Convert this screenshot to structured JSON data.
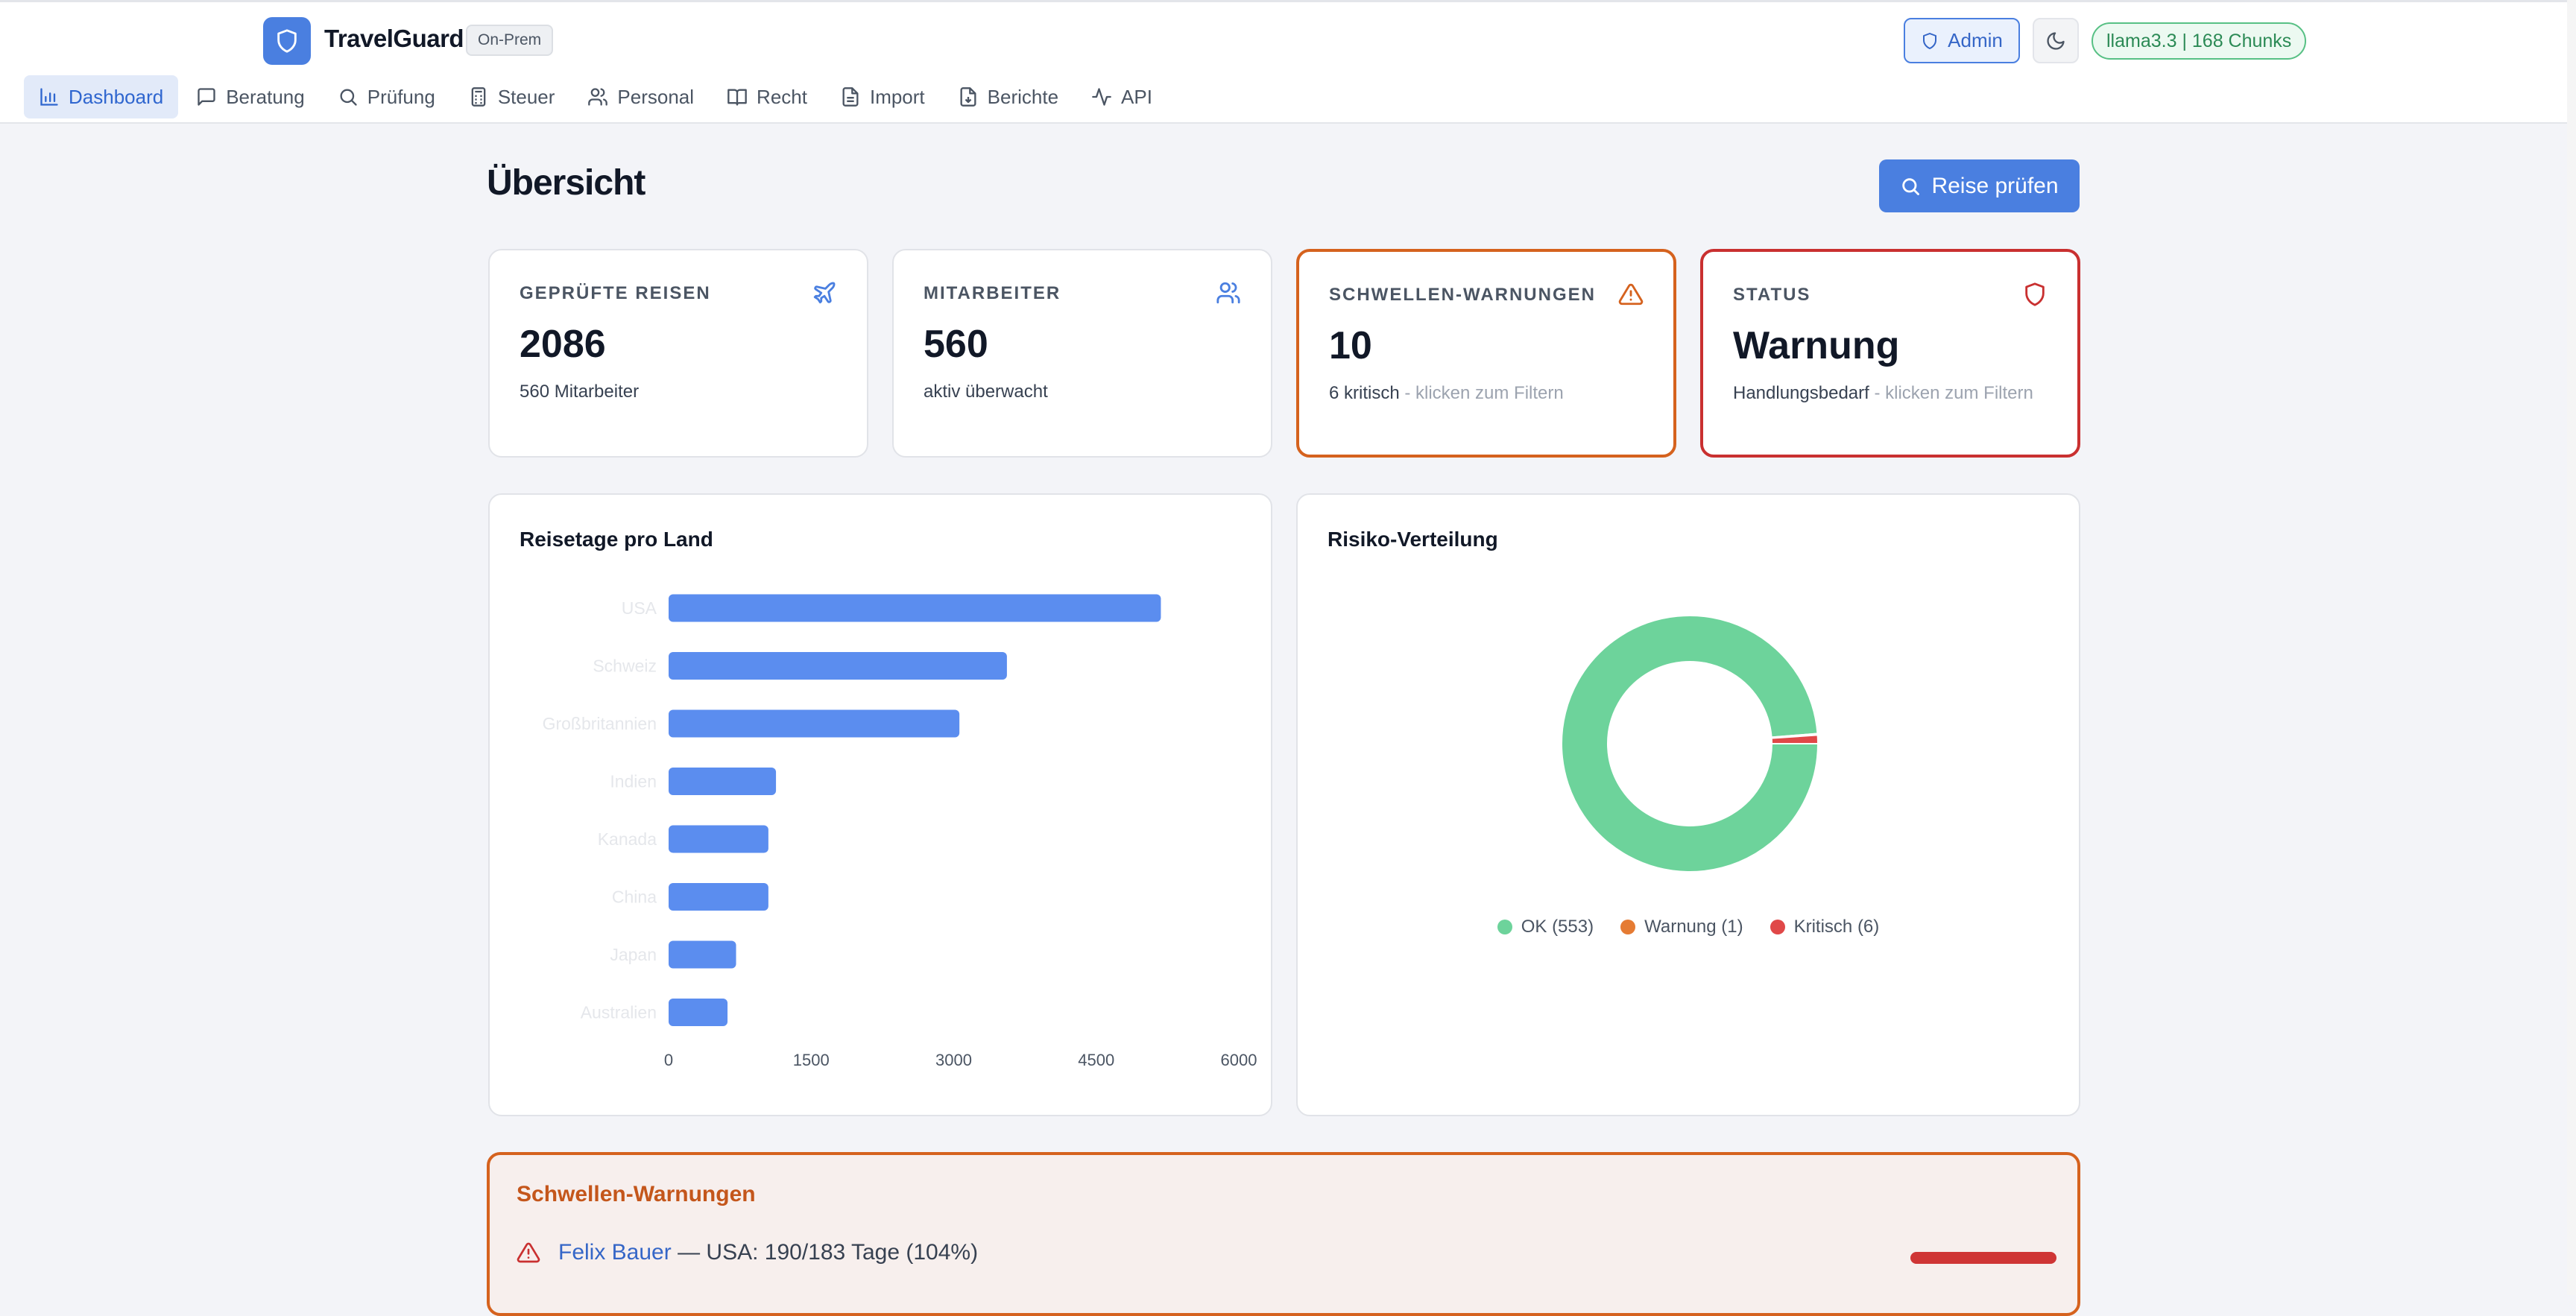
{
  "app": {
    "name": "TravelGuard",
    "badge": "On-Prem",
    "admin_label": "Admin",
    "model_status": "llama3.3 | 168 Chunks"
  },
  "nav": [
    {
      "label": "Dashboard",
      "icon": "bar-chart-icon",
      "active": true
    },
    {
      "label": "Beratung",
      "icon": "chat-icon"
    },
    {
      "label": "Prüfung",
      "icon": "search-icon"
    },
    {
      "label": "Steuer",
      "icon": "calculator-icon"
    },
    {
      "label": "Personal",
      "icon": "users-icon"
    },
    {
      "label": "Recht",
      "icon": "book-icon"
    },
    {
      "label": "Import",
      "icon": "file-icon"
    },
    {
      "label": "Berichte",
      "icon": "report-icon"
    },
    {
      "label": "API",
      "icon": "activity-icon"
    }
  ],
  "page": {
    "title": "Übersicht",
    "primary_action": "Reise prüfen"
  },
  "stats": {
    "trips": {
      "label": "GEPRÜFTE REISEN",
      "value": "2086",
      "sub": "560 Mitarbeiter"
    },
    "employees": {
      "label": "MITARBEITER",
      "value": "560",
      "sub": "aktiv überwacht"
    },
    "warnings": {
      "label": "SCHWELLEN-WARNUNGEN",
      "value": "10",
      "sub": "6 kritisch",
      "hint": " - klicken zum Filtern"
    },
    "status": {
      "label": "STATUS",
      "value": "Warnung",
      "sub": "Handlungsbedarf",
      "hint": " - klicken zum Filtern"
    }
  },
  "colors": {
    "accent": "#4a7fe0",
    "bar": "#5b8def",
    "ok": "#6dd39b",
    "warning": "#e57b33",
    "critical": "#e04848"
  },
  "bar_chart_title": "Reisetage pro Land",
  "donut_chart_title": "Risiko-Verteilung",
  "chart_data": [
    {
      "type": "bar",
      "orientation": "horizontal",
      "title": "Reisetage pro Land",
      "categories": [
        "USA",
        "Schweiz",
        "Großbritannien",
        "Indien",
        "Kanada",
        "China",
        "Japan",
        "Australien"
      ],
      "values": [
        5180,
        3560,
        3060,
        1130,
        1050,
        1050,
        710,
        620
      ],
      "xticks": [
        "0",
        "1500",
        "3000",
        "4500",
        "6000"
      ],
      "xlim": [
        0,
        6000
      ],
      "grid": false
    },
    {
      "type": "pie",
      "variant": "donut",
      "title": "Risiko-Verteilung",
      "categories": [
        "OK",
        "Warnung",
        "Kritisch"
      ],
      "values": [
        553,
        1,
        6
      ],
      "legend": [
        "OK (553)",
        "Warnung (1)",
        "Kritisch (6)"
      ],
      "legend_position": "bottom"
    }
  ],
  "warnings_panel": {
    "title": "Schwellen-Warnungen",
    "rows": [
      {
        "name": "Felix Bauer",
        "detail": " — USA: 190/183 Tage (104%)",
        "ratio": 1.04
      }
    ]
  }
}
